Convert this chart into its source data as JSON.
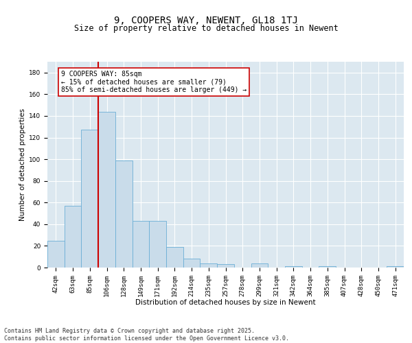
{
  "title": "9, COOPERS WAY, NEWENT, GL18 1TJ",
  "subtitle": "Size of property relative to detached houses in Newent",
  "xlabel": "Distribution of detached houses by size in Newent",
  "ylabel": "Number of detached properties",
  "categories": [
    "42sqm",
    "63sqm",
    "85sqm",
    "106sqm",
    "128sqm",
    "149sqm",
    "171sqm",
    "192sqm",
    "214sqm",
    "235sqm",
    "257sqm",
    "278sqm",
    "299sqm",
    "321sqm",
    "342sqm",
    "364sqm",
    "385sqm",
    "407sqm",
    "428sqm",
    "450sqm",
    "471sqm"
  ],
  "values": [
    25,
    57,
    127,
    144,
    99,
    43,
    43,
    19,
    8,
    4,
    3,
    0,
    4,
    0,
    1,
    0,
    1,
    0,
    0,
    0,
    1
  ],
  "bar_color": "#c9dcea",
  "bar_edge_color": "#6aaed6",
  "vline_index": 2,
  "vline_color": "#cc0000",
  "annotation_text": "9 COOPERS WAY: 85sqm\n← 15% of detached houses are smaller (79)\n85% of semi-detached houses are larger (449) →",
  "annotation_box_color": "#cc0000",
  "annotation_bg": "#ffffff",
  "ylim": [
    0,
    190
  ],
  "yticks": [
    0,
    20,
    40,
    60,
    80,
    100,
    120,
    140,
    160,
    180
  ],
  "background_color": "#dce8f0",
  "grid_color": "#ffffff",
  "footer": "Contains HM Land Registry data © Crown copyright and database right 2025.\nContains public sector information licensed under the Open Government Licence v3.0.",
  "title_fontsize": 10,
  "subtitle_fontsize": 8.5,
  "axis_label_fontsize": 7.5,
  "tick_fontsize": 6.5,
  "annotation_fontsize": 7,
  "footer_fontsize": 6
}
